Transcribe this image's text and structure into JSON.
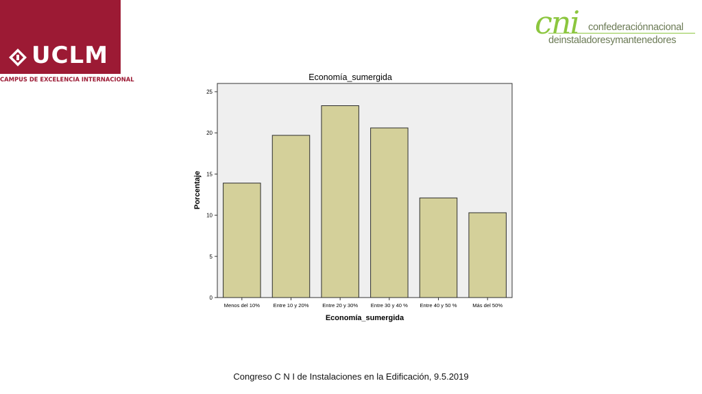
{
  "logos": {
    "uclm": {
      "name": "UCLM",
      "subtitle": "CAMPUS DE EXCELENCIA INTERNACIONAL",
      "color": "#9c1a34"
    },
    "cni": {
      "mark": "cni",
      "line1": "confederaciónnacional",
      "line2": "deinstaladoresymantenedores",
      "color": "#8cc63f"
    }
  },
  "footer": {
    "text": "Congreso C N I de Instalaciones en la Edificación, 9.5.2019"
  },
  "chart_data": {
    "type": "bar",
    "title": "Economía_sumergida",
    "xlabel": "Economía_sumergida",
    "ylabel": "Porcentaje",
    "categories": [
      "Menos del 10%",
      "Entre 10 y 20%",
      "Entre 20 y 30%",
      "Entre 30 y 40 %",
      "Entre 40 y 50 %",
      "Más del 50%"
    ],
    "values": [
      13.9,
      19.7,
      23.3,
      20.6,
      12.1,
      10.3
    ],
    "ylim": [
      0,
      26
    ],
    "yticks": [
      0,
      5,
      10,
      15,
      20,
      25
    ],
    "colors": {
      "bar": "#d4d09a",
      "bar_stroke": "#2b2b2b",
      "plot_bg": "#efefef"
    }
  }
}
